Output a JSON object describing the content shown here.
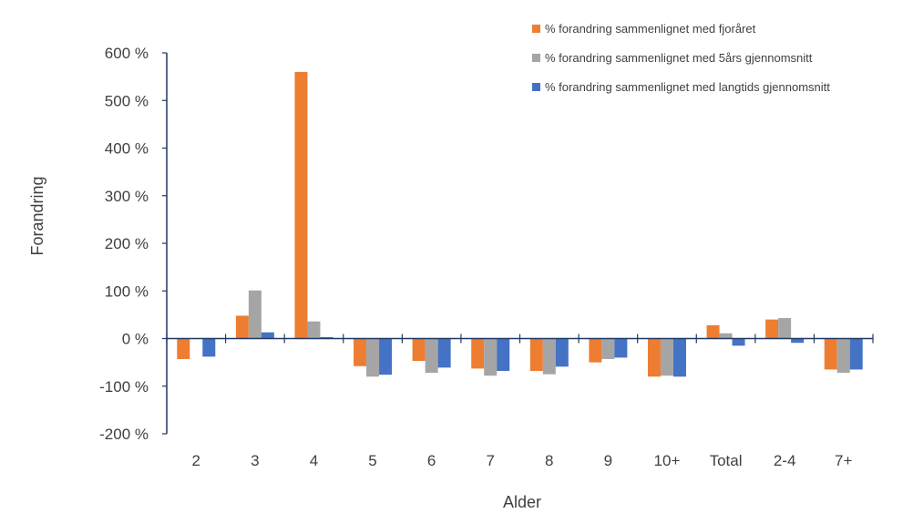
{
  "chart_data": {
    "type": "bar",
    "xlabel": "Alder",
    "ylabel": "Forandring",
    "ylim": [
      -200,
      600
    ],
    "y_ticks": [
      -200,
      -100,
      0,
      100,
      200,
      300,
      400,
      500,
      600
    ],
    "y_tick_labels": [
      "-200 %",
      "-100 %",
      "0 %",
      "100 %",
      "200 %",
      "300 %",
      "400 %",
      "500 %",
      "600 %"
    ],
    "categories": [
      "2",
      "3",
      "4",
      "5",
      "6",
      "7",
      "8",
      "9",
      "10+",
      "Total",
      "2-4",
      "7+"
    ],
    "grid": false,
    "legend_position": "top-right",
    "series": [
      {
        "name": "% forandring sammenlignet med fjoråret",
        "color": "#ED7D31",
        "values": [
          -43,
          48,
          560,
          -58,
          -47,
          -63,
          -68,
          -50,
          -80,
          28,
          40,
          -65
        ]
      },
      {
        "name": "% forandring sammenlignet med 5års gjennomsnitt",
        "color": "#A5A5A5",
        "values": [
          0,
          101,
          36,
          -80,
          -72,
          -78,
          -75,
          -43,
          -78,
          11,
          43,
          -72
        ]
      },
      {
        "name": "% forandring sammenlignet med langtids gjennomsnitt",
        "color": "#4472C4",
        "values": [
          -38,
          13,
          3,
          -76,
          -61,
          -68,
          -59,
          -40,
          -80,
          -15,
          -9,
          -65
        ]
      }
    ]
  }
}
